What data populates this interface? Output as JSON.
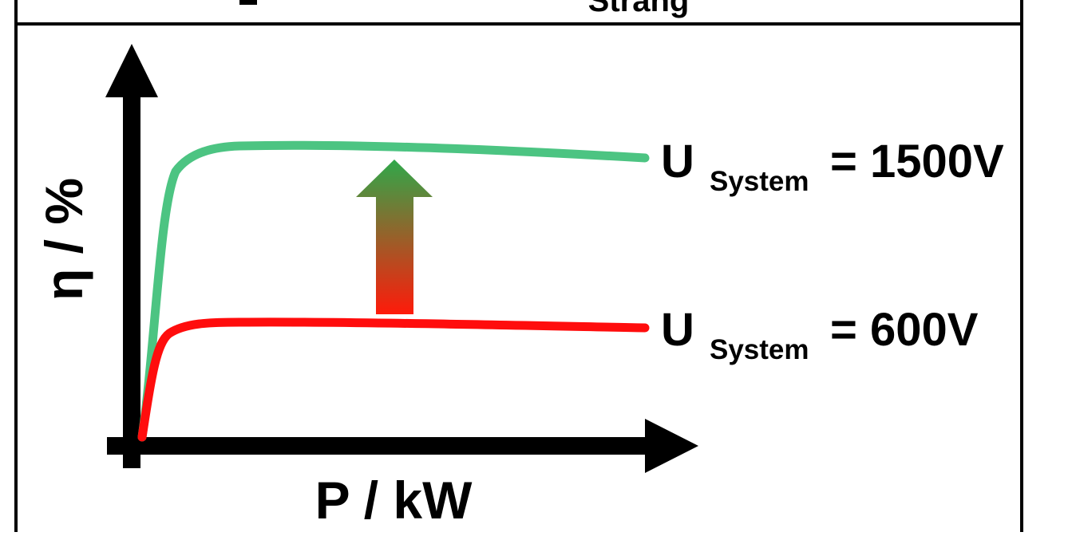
{
  "header": {
    "top_caption": "Strang"
  },
  "axes": {
    "x_label": "P / kW",
    "y_label": "η / %"
  },
  "curves": {
    "high": {
      "prefix": "U",
      "subscript": "System",
      "value": "= 1500V",
      "color": "#4cc482"
    },
    "low": {
      "prefix": "U",
      "subscript": "System",
      "value": "= 600V",
      "color": "#ff0d0d"
    }
  },
  "arrow": {
    "color_top": "#2fa84a",
    "color_bottom": "#ff1a0a"
  }
}
